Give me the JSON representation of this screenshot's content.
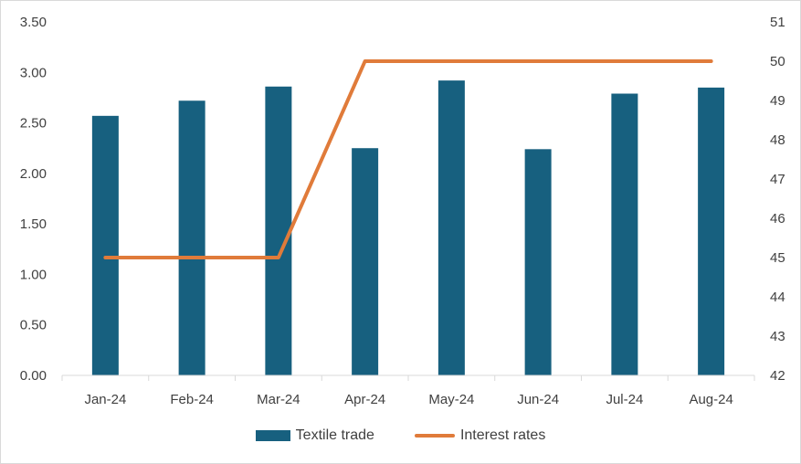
{
  "chart_data": {
    "type": "bar+line",
    "categories": [
      "Jan-24",
      "Feb-24",
      "Mar-24",
      "Apr-24",
      "May-24",
      "Jun-24",
      "Jul-24",
      "Aug-24"
    ],
    "series": [
      {
        "name": "Textile trade",
        "type": "bar",
        "axis": "left",
        "values": [
          2.57,
          2.72,
          2.86,
          2.25,
          2.92,
          2.24,
          2.79,
          2.85
        ]
      },
      {
        "name": "Interest rates",
        "type": "line",
        "axis": "right",
        "values": [
          45,
          45,
          45,
          50,
          50,
          50,
          50,
          50
        ]
      }
    ],
    "left_axis": {
      "ylim": [
        0,
        3.5
      ],
      "ticks": [
        "0.00",
        "0.50",
        "1.00",
        "1.50",
        "2.00",
        "2.50",
        "3.00",
        "3.50"
      ]
    },
    "right_axis": {
      "ylim": [
        42,
        51
      ],
      "ticks": [
        "42",
        "43",
        "44",
        "45",
        "46",
        "47",
        "48",
        "49",
        "50",
        "51"
      ]
    },
    "grid": false,
    "legend_position": "bottom",
    "colors": {
      "bar": "#17607f",
      "line": "#e07b3a"
    }
  }
}
